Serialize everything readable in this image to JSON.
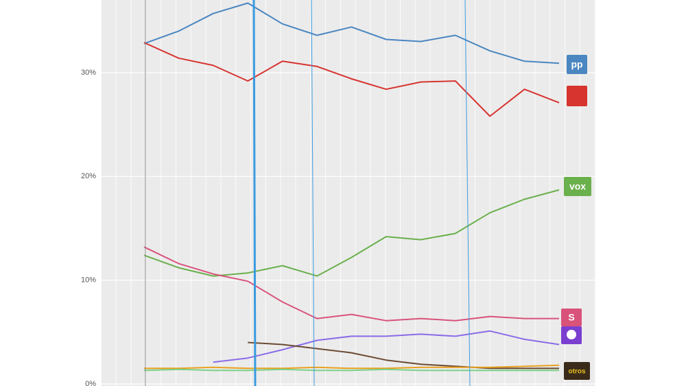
{
  "chart_data": {
    "type": "line",
    "categories": [
      null,
      null,
      null,
      null,
      null,
      null,
      null,
      null,
      null,
      null,
      null,
      null,
      null
    ],
    "ylim": [
      0,
      37
    ],
    "yticks": [
      {
        "value": 0,
        "label": "0%"
      },
      {
        "value": 10,
        "label": "10%"
      },
      {
        "value": 20,
        "label": "20%"
      },
      {
        "value": 30,
        "label": "30%"
      }
    ],
    "grid": true,
    "series": [
      {
        "name": "pp",
        "color": "#4a86c0",
        "values": [
          32.8,
          34.0,
          35.7,
          36.7,
          34.7,
          33.6,
          34.4,
          33.2,
          33.0,
          33.6,
          32.1,
          31.1,
          30.9
        ]
      },
      {
        "color": "#d7332f",
        "values": [
          32.9,
          31.4,
          30.7,
          29.2,
          31.1,
          30.6,
          29.4,
          28.4,
          29.1,
          29.2,
          25.8,
          28.4,
          27.1
        ]
      },
      {
        "name": "vox",
        "color": "#6ab04c",
        "values": [
          12.4,
          11.2,
          10.4,
          10.7,
          11.4,
          10.4,
          12.2,
          14.2,
          13.9,
          14.5,
          16.5,
          17.8,
          18.7
        ]
      },
      {
        "name": "S",
        "color": "#d9527a",
        "values": [
          13.2,
          11.6,
          10.6,
          9.9,
          7.9,
          6.3,
          6.7,
          6.1,
          6.3,
          6.1,
          6.5,
          6.3,
          6.3
        ]
      },
      {
        "color": "#8a6be8",
        "values": [
          null,
          null,
          2.1,
          2.5,
          3.3,
          4.2,
          4.6,
          4.6,
          4.8,
          4.6,
          5.1,
          4.3,
          3.8
        ]
      },
      {
        "name": "otros",
        "color": "#6b4a32",
        "values": [
          null,
          null,
          null,
          4.0,
          3.8,
          3.4,
          3.0,
          2.3,
          1.9,
          1.7,
          1.5,
          1.5,
          1.5
        ]
      },
      {
        "color": "#e8a020",
        "values": [
          1.5,
          1.5,
          1.6,
          1.5,
          1.5,
          1.6,
          1.5,
          1.5,
          1.6,
          1.6,
          1.6,
          1.7,
          1.8
        ]
      },
      {
        "color": "#7bd18a",
        "values": [
          1.3,
          1.4,
          1.3,
          1.3,
          1.4,
          1.3,
          1.3,
          1.4,
          1.3,
          1.3,
          1.3,
          1.3,
          1.3
        ]
      }
    ]
  }
}
